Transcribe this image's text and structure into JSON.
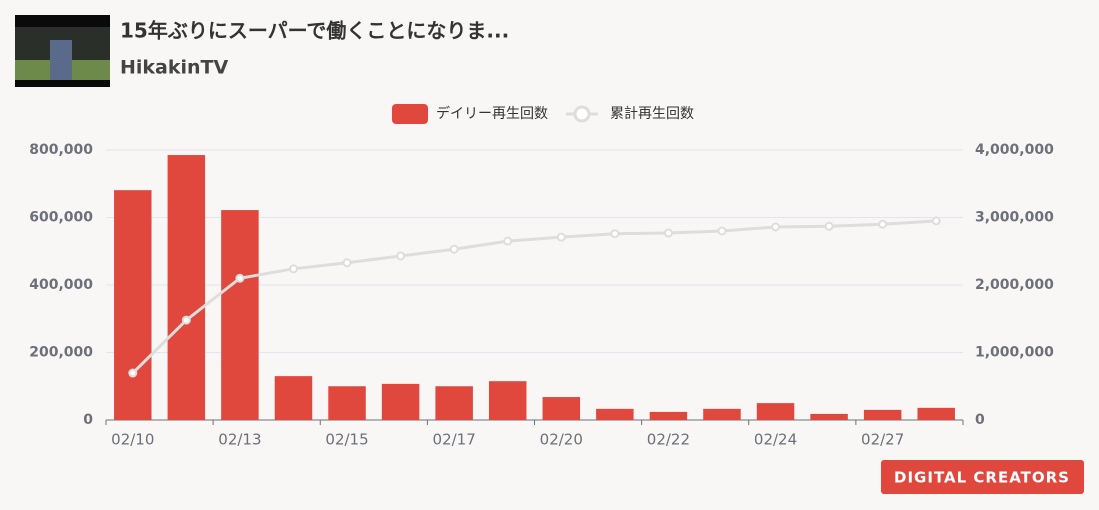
{
  "video": {
    "title": "15年ぶりにスーパーで働くことになりま...",
    "channel": "HikakinTV"
  },
  "logo": "DIGITAL CREATORS",
  "chart_data": {
    "type": "bar",
    "categories": [
      "02/10",
      null,
      "02/13",
      null,
      "02/15",
      null,
      "02/17",
      null,
      "02/20",
      null,
      "02/22",
      null,
      "02/24",
      null,
      "02/27",
      null
    ],
    "series": [
      {
        "name": "デイリー再生回数",
        "color": "#e0483e",
        "type": "bar",
        "values": [
          681000,
          785000,
          622000,
          130000,
          100000,
          107000,
          100000,
          115000,
          68000,
          33000,
          24000,
          33000,
          50000,
          18000,
          30000,
          36000
        ]
      },
      {
        "name": "累計再生回数",
        "color": "#dddddd",
        "type": "line",
        "axis": "y2",
        "values": [
          696000,
          1480000,
          2100000,
          2240000,
          2330000,
          2430000,
          2530000,
          2650000,
          2710000,
          2760000,
          2770000,
          2800000,
          2860000,
          2870000,
          2900000,
          2950000
        ]
      }
    ],
    "ylim": [
      0,
      800000
    ],
    "yticks": [
      0,
      {
        "value": 200000,
        "label": "200,000"
      },
      {
        "value": 400000,
        "label": "400,000"
      },
      {
        "value": 600000,
        "label": "600,000"
      },
      {
        "value": 800000,
        "label": "800,000"
      }
    ],
    "y2lim": [
      0,
      4000000
    ],
    "y2ticks": [
      0,
      {
        "value": 1000000,
        "label": "1,000,000"
      },
      {
        "value": 2000000,
        "label": "2,000,000"
      },
      {
        "value": 3000000,
        "label": "3,000,000"
      },
      {
        "value": 4000000,
        "label": "4,000,000"
      }
    ],
    "grid": true,
    "legend": "top"
  }
}
